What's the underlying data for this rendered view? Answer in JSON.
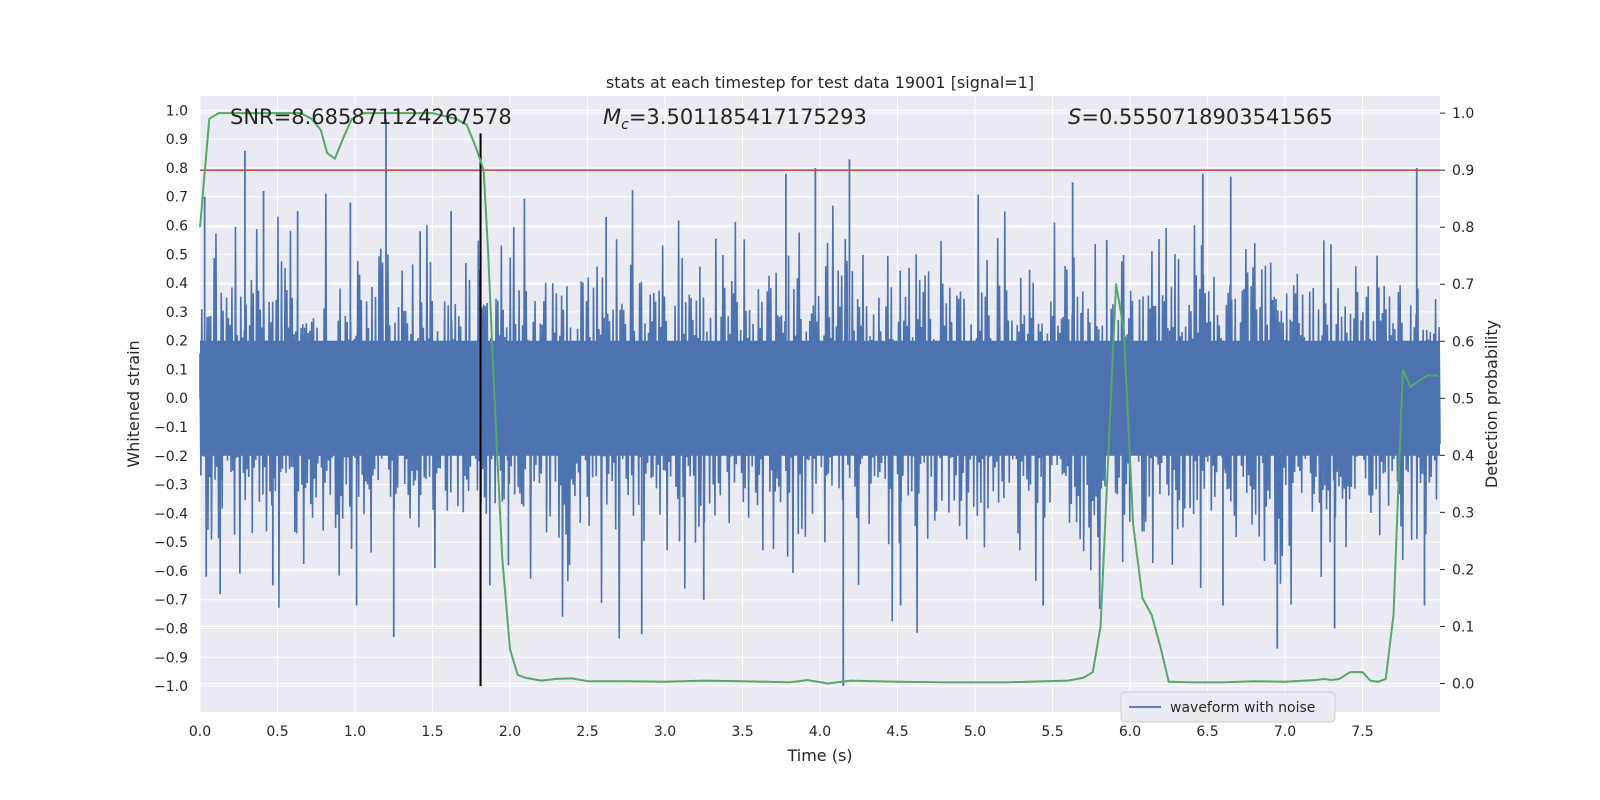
{
  "chart_data": {
    "type": "line",
    "title": "stats at each timestep for test data 19001 [signal=1]",
    "xlabel": "Time (s)",
    "ylabel": "Whitened strain",
    "y2label": "Detection probability",
    "xlim": [
      0.0,
      8.0
    ],
    "ylim": [
      -1.09,
      1.05
    ],
    "y2lim": [
      -0.05,
      1.03
    ],
    "xticks": [
      "0.0",
      "0.5",
      "1.0",
      "1.5",
      "2.0",
      "2.5",
      "3.0",
      "3.5",
      "4.0",
      "4.5",
      "5.0",
      "5.5",
      "6.0",
      "6.5",
      "7.0",
      "7.5"
    ],
    "yticks": [
      "1.0",
      "0.9",
      "0.8",
      "0.7",
      "0.6",
      "0.5",
      "0.4",
      "0.3",
      "0.2",
      "0.1",
      "0.0",
      "-0.1",
      "-0.2",
      "-0.3",
      "-0.4",
      "-0.5",
      "-0.6",
      "-0.7",
      "-0.8",
      "-0.9",
      "-1.0"
    ],
    "y2ticks": [
      "1.0",
      "0.9",
      "0.8",
      "0.7",
      "0.6",
      "0.5",
      "0.4",
      "0.3",
      "0.2",
      "0.1",
      "0.0"
    ],
    "annotations": {
      "snr": "SNR=8.685871124267578",
      "mc_symbol": "M",
      "mc_sub": "c",
      "mc_value": "=3.501185417175293",
      "s_symbol": "S",
      "s_value": "=0.5550718903541565"
    },
    "legend": {
      "label": "waveform with noise",
      "loc": "lower-right"
    },
    "threshold": {
      "axis": "y2",
      "value": 0.9,
      "color": "#c44e52"
    },
    "marker_line": {
      "x": 1.81,
      "y_from": -1.0,
      "y_to": 0.92,
      "color": "#000000"
    },
    "waveform": {
      "name": "waveform with noise",
      "color": "#4c72b0",
      "sample_count": 1400,
      "seed": 19001,
      "spikes": [
        {
          "x": 0.03,
          "y": 0.7
        },
        {
          "x": 0.04,
          "y": -0.62
        },
        {
          "x": 0.13,
          "y": -0.68
        },
        {
          "x": 0.29,
          "y": 0.86
        },
        {
          "x": 0.41,
          "y": 0.72
        },
        {
          "x": 0.47,
          "y": -0.65
        },
        {
          "x": 0.63,
          "y": 0.65
        },
        {
          "x": 0.97,
          "y": 0.68
        },
        {
          "x": 1.01,
          "y": -0.72
        },
        {
          "x": 1.2,
          "y": 0.97
        },
        {
          "x": 1.25,
          "y": -0.83
        },
        {
          "x": 1.42,
          "y": 0.58
        },
        {
          "x": 1.62,
          "y": 0.65
        },
        {
          "x": 1.87,
          "y": -0.65
        },
        {
          "x": 1.99,
          "y": -0.58
        },
        {
          "x": 2.62,
          "y": 0.63
        },
        {
          "x": 2.85,
          "y": -0.82
        },
        {
          "x": 3.25,
          "y": -0.7
        },
        {
          "x": 3.78,
          "y": 0.78
        },
        {
          "x": 3.97,
          "y": 0.8
        },
        {
          "x": 4.15,
          "y": -1.0
        },
        {
          "x": 4.19,
          "y": 0.83
        },
        {
          "x": 4.52,
          "y": -0.72
        },
        {
          "x": 5.44,
          "y": -0.72
        },
        {
          "x": 5.63,
          "y": 0.75
        },
        {
          "x": 5.85,
          "y": 0.55
        },
        {
          "x": 6.47,
          "y": 0.78
        },
        {
          "x": 6.65,
          "y": 0.77
        },
        {
          "x": 6.6,
          "y": -0.72
        },
        {
          "x": 6.95,
          "y": -0.87
        },
        {
          "x": 7.32,
          "y": -0.8
        },
        {
          "x": 7.85,
          "y": 0.8
        },
        {
          "x": 7.9,
          "y": -0.72
        }
      ]
    },
    "detection_probability": {
      "name": "Detection probability",
      "color": "#55a868",
      "x": [
        0.0,
        0.06,
        0.12,
        0.3,
        0.5,
        0.65,
        0.72,
        0.78,
        0.82,
        0.87,
        0.93,
        0.98,
        1.05,
        1.15,
        1.3,
        1.5,
        1.65,
        1.72,
        1.78,
        1.83,
        1.86,
        1.9,
        1.95,
        2.0,
        2.05,
        2.1,
        2.2,
        2.3,
        2.4,
        2.5,
        2.7,
        3.0,
        3.25,
        3.5,
        3.8,
        3.92,
        4.05,
        4.2,
        4.5,
        4.8,
        5.2,
        5.6,
        5.7,
        5.76,
        5.81,
        5.86,
        5.91,
        5.96,
        6.02,
        6.08,
        6.14,
        6.2,
        6.25,
        6.4,
        6.6,
        6.8,
        7.0,
        7.2,
        7.25,
        7.3,
        7.35,
        7.42,
        7.5,
        7.55,
        7.6,
        7.65,
        7.7,
        7.76,
        7.81,
        7.86,
        7.92,
        7.99
      ],
      "y": [
        0.8,
        0.99,
        1.0,
        1.0,
        1.0,
        1.0,
        0.99,
        0.97,
        0.93,
        0.92,
        0.96,
        0.99,
        1.0,
        1.0,
        1.0,
        1.0,
        0.99,
        0.98,
        0.94,
        0.9,
        0.75,
        0.5,
        0.22,
        0.06,
        0.015,
        0.01,
        0.005,
        0.008,
        0.009,
        0.004,
        0.004,
        0.003,
        0.005,
        0.004,
        0.002,
        0.006,
        0.0,
        0.005,
        0.003,
        0.002,
        0.002,
        0.005,
        0.01,
        0.02,
        0.1,
        0.4,
        0.7,
        0.62,
        0.28,
        0.15,
        0.12,
        0.06,
        0.003,
        0.002,
        0.002,
        0.004,
        0.003,
        0.006,
        0.008,
        0.006,
        0.008,
        0.02,
        0.02,
        0.005,
        0.003,
        0.008,
        0.12,
        0.55,
        0.52,
        0.53,
        0.54,
        0.54
      ]
    }
  }
}
